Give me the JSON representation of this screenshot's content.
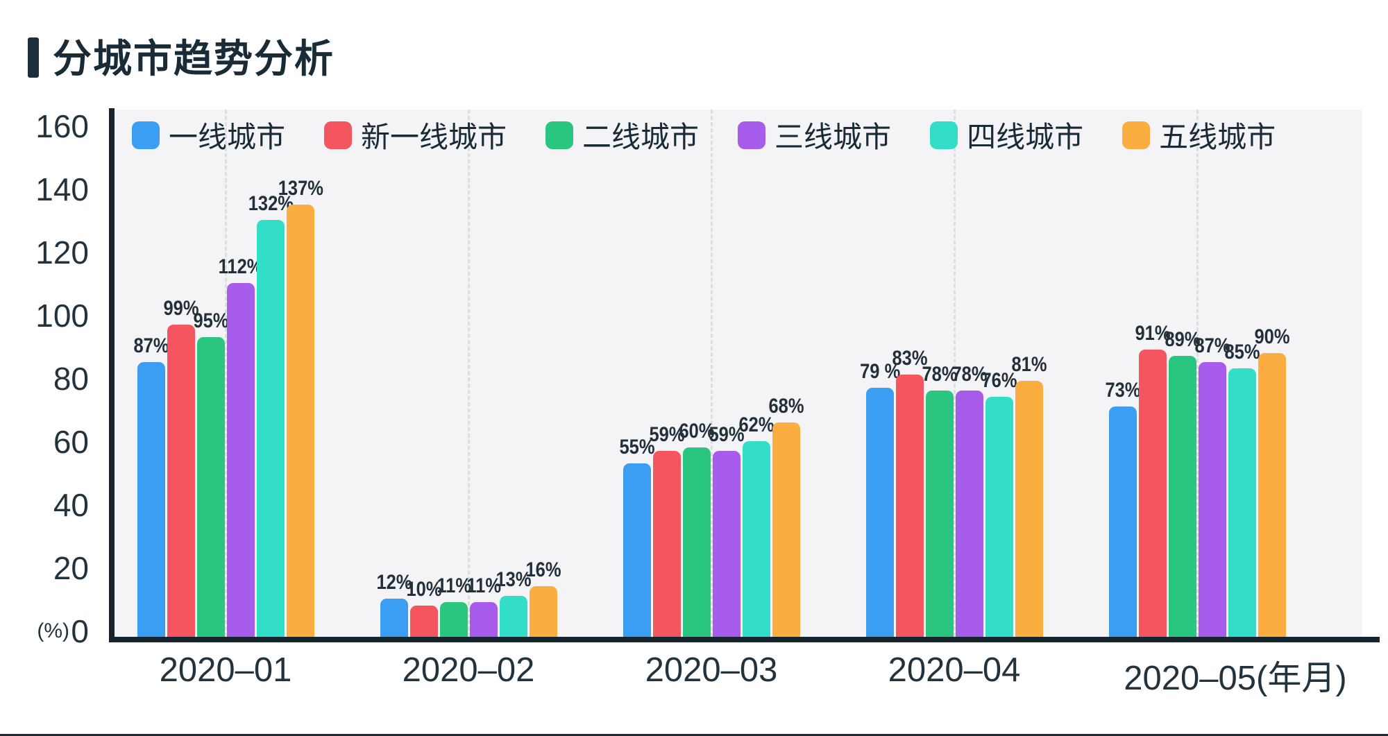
{
  "title": "分城市趋势分析",
  "chart_data": {
    "type": "bar",
    "title": "分城市趋势分析",
    "categories": [
      "2020–01",
      "2020–02",
      "2020–03",
      "2020–04",
      "2020–05"
    ],
    "x_axis_unit_suffix": "(年月)",
    "y_axis_unit": "(%)",
    "ylim": [
      0,
      160
    ],
    "yticks": [
      0,
      20,
      40,
      60,
      80,
      100,
      120,
      140,
      160
    ],
    "grid": "vertical dashed line at each category center",
    "legend_position": "top",
    "plot_background": "#f4f4f6",
    "axis_color": "#16242e",
    "series": [
      {
        "name": "一线城市",
        "color": "#3b9ef2",
        "values": [
          87,
          12,
          55,
          79,
          73
        ],
        "labels": [
          "87%",
          "12%",
          "55%",
          "79 %",
          "73%"
        ]
      },
      {
        "name": "新一线城市",
        "color": "#f4555e",
        "values": [
          99,
          10,
          59,
          83,
          91
        ],
        "labels": [
          "99%",
          "10%",
          "59%",
          "83%",
          "91%"
        ]
      },
      {
        "name": "二线城市",
        "color": "#2ac57e",
        "values": [
          95,
          11,
          60,
          78,
          89
        ],
        "labels": [
          "95%",
          "11%",
          "60%",
          "78%",
          "89%"
        ]
      },
      {
        "name": "三线城市",
        "color": "#a75ceb",
        "values": [
          112,
          11,
          59,
          78,
          87
        ],
        "labels": [
          "112%",
          "11%",
          "59%",
          "78%",
          "87%"
        ]
      },
      {
        "name": "四线城市",
        "color": "#33dec8",
        "values": [
          132,
          13,
          62,
          76,
          85
        ],
        "labels": [
          "132%",
          "13%",
          "62%",
          "76%",
          "85%"
        ]
      },
      {
        "name": "五线城市",
        "color": "#fbad40",
        "values": [
          137,
          16,
          68,
          81,
          90
        ],
        "labels": [
          "137%",
          "16%",
          "68%",
          "81%",
          "90%"
        ]
      }
    ]
  }
}
